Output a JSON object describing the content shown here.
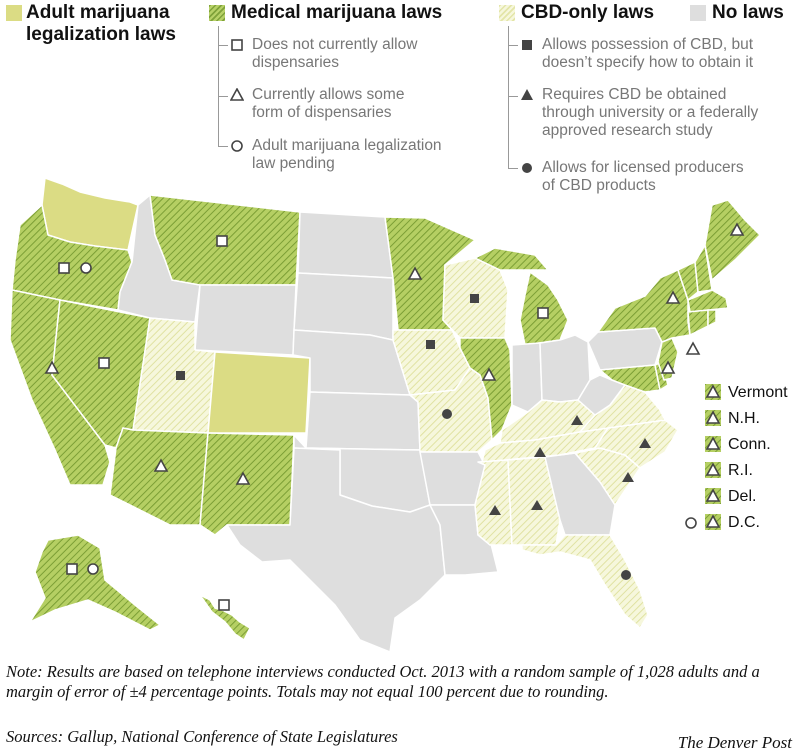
{
  "legend": {
    "adult": {
      "label": "Adult marijuana\nlegalization laws",
      "color": "#dbdc84"
    },
    "medical": {
      "label": "Medical marijuana laws",
      "color": "#a8c552",
      "items": [
        {
          "symbol": "square",
          "text": "Does not currently allow\ndispensaries"
        },
        {
          "symbol": "triangle",
          "text": "Currently allows some\nform of dispensaries"
        },
        {
          "symbol": "circle",
          "text": "Adult marijuana legalization\nlaw pending"
        }
      ]
    },
    "cbd": {
      "label": "CBD-only laws",
      "color": "#eeefc4",
      "items": [
        {
          "symbol": "filled-square",
          "text": "Allows possession of CBD, but\ndoesn’t specify how to obtain it"
        },
        {
          "symbol": "filled-triangle",
          "text": "Requires CBD be obtained\nthrough university or a federally\napproved research study"
        },
        {
          "symbol": "filled-circle",
          "text": "Allows for licensed producers\nof CBD products"
        }
      ]
    },
    "none": {
      "label": "No laws",
      "color": "#dedede"
    }
  },
  "northeast_states": [
    {
      "label": "Vermont",
      "symbols": [
        "triangle"
      ]
    },
    {
      "label": "N.H.",
      "symbols": [
        "triangle"
      ]
    },
    {
      "label": "Conn.",
      "symbols": [
        "triangle"
      ]
    },
    {
      "label": "R.I.",
      "symbols": [
        "triangle"
      ]
    },
    {
      "label": "Del.",
      "symbols": [
        "triangle"
      ]
    },
    {
      "label": "D.C.",
      "symbols": [
        "circle",
        "triangle"
      ]
    }
  ],
  "note": "Note: Results are based on telephone interviews conducted Oct. 2013 with a random sample of 1,028 adults and a margin of error of ±4 percentage points. Totals may not equal 100 percent due to rounding.",
  "sources": "Sources: Gallup, National Conference of State Legislatures",
  "credit": "The Denver Post"
}
